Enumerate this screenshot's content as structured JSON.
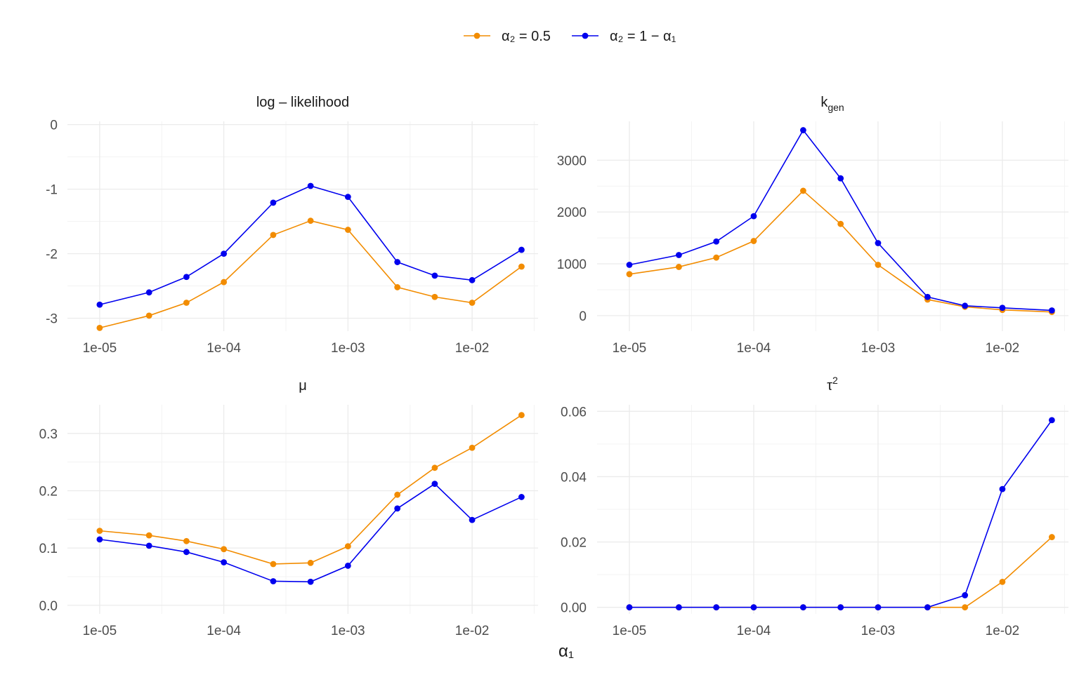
{
  "legend": [
    {
      "label": "α₂ = 0.5",
      "color": "#f28c00"
    },
    {
      "label": "α₂ = 1 − α₁",
      "color": "#0000ee"
    }
  ],
  "chart_data": {
    "type": "line",
    "xlabel": "α₁",
    "x_scale": "log",
    "x": [
      1e-05,
      2.5e-05,
      5e-05,
      0.0001,
      0.00025,
      0.0005,
      0.001,
      0.0025,
      0.005,
      0.01,
      0.025
    ],
    "x_ticks": [
      1e-05,
      0.0001,
      0.001,
      0.01
    ],
    "x_tick_labels": [
      "1e-05",
      "1e-04",
      "1e-03",
      "1e-02"
    ],
    "grid": true,
    "legend_position": "top",
    "panels": [
      {
        "title": "log – likelihood",
        "y_ticks": [
          0,
          -1,
          -2,
          -3
        ],
        "y_tick_labels": [
          "0",
          "-1",
          "-2",
          "-3"
        ],
        "ylim": [
          -3.2,
          0.05
        ],
        "series": [
          {
            "name": "α₂ = 0.5",
            "values": [
              -3.15,
              -2.96,
              -2.76,
              -2.44,
              -1.71,
              -1.49,
              -1.63,
              -2.52,
              -2.67,
              -2.76,
              -2.2
            ]
          },
          {
            "name": "α₂ = 1 − α₁",
            "values": [
              -2.79,
              -2.6,
              -2.36,
              -2.0,
              -1.21,
              -0.95,
              -1.12,
              -2.13,
              -2.34,
              -2.41,
              -1.94
            ]
          }
        ]
      },
      {
        "title": "k",
        "title_sub": "gen",
        "y_ticks": [
          0,
          1000,
          2000,
          3000
        ],
        "y_tick_labels": [
          "0",
          "1000",
          "2000",
          "3000"
        ],
        "ylim": [
          -300,
          3750
        ],
        "series": [
          {
            "name": "α₂ = 0.5",
            "values": [
              800,
              940,
              1120,
              1440,
              2410,
              1770,
              980,
              310,
              170,
              110,
              70
            ]
          },
          {
            "name": "α₂ = 1 − α₁",
            "values": [
              980,
              1170,
              1430,
              1920,
              3580,
              2650,
              1400,
              360,
              190,
              150,
              100
            ]
          }
        ]
      },
      {
        "title": "μ",
        "y_ticks": [
          0.0,
          0.1,
          0.2,
          0.3
        ],
        "y_tick_labels": [
          "0.0",
          "0.1",
          "0.2",
          "0.3"
        ],
        "ylim": [
          -0.015,
          0.35
        ],
        "series": [
          {
            "name": "α₂ = 0.5",
            "values": [
              0.13,
              0.122,
              0.112,
              0.098,
              0.072,
              0.074,
              0.103,
              0.193,
              0.24,
              0.275,
              0.332
            ]
          },
          {
            "name": "α₂ = 1 − α₁",
            "values": [
              0.115,
              0.104,
              0.093,
              0.075,
              0.042,
              0.041,
              0.069,
              0.169,
              0.212,
              0.149,
              0.189
            ]
          }
        ]
      },
      {
        "title": "τ",
        "title_sup": "2",
        "y_ticks": [
          0.0,
          0.02,
          0.04,
          0.06
        ],
        "y_tick_labels": [
          "0.00",
          "0.02",
          "0.04",
          "0.06"
        ],
        "ylim": [
          -0.002,
          0.062
        ],
        "series": [
          {
            "name": "α₂ = 0.5",
            "values": [
              0,
              0,
              0,
              0,
              0,
              0,
              0,
              0,
              0,
              0.0078,
              0.0215
            ]
          },
          {
            "name": "α₂ = 1 − α₁",
            "values": [
              0,
              0,
              0,
              0,
              0,
              0,
              0,
              0,
              0.0037,
              0.0362,
              0.0573
            ]
          }
        ]
      }
    ]
  }
}
